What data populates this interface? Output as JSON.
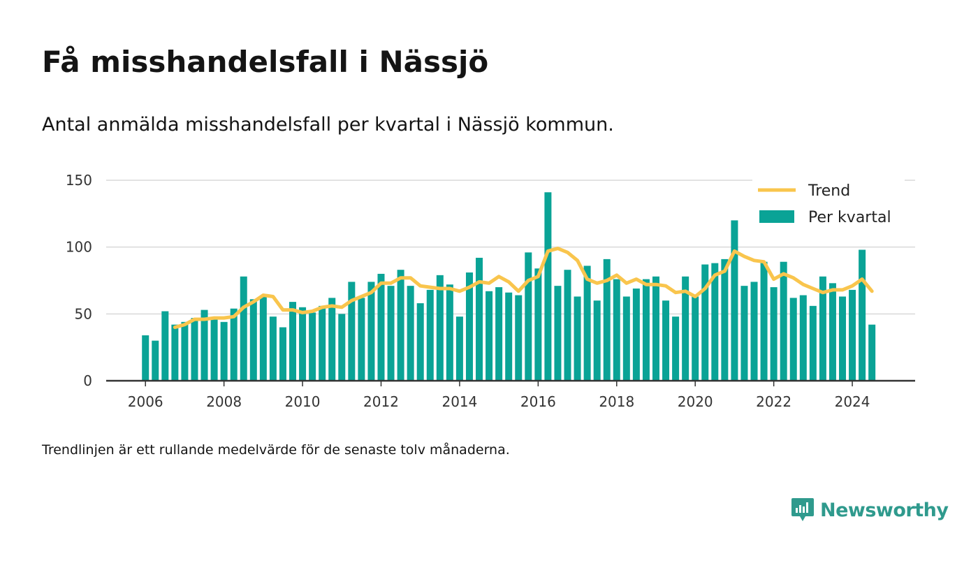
{
  "title": "Få misshandelsfall i Nässjö",
  "subtitle": "Antal anmälda misshandelsfall per kvartal i Nässjö kommun.",
  "note": "Trendlinjen är ett rullande medelvärde för de senaste tolv månaderna.",
  "brand": {
    "name": "Newsworthy",
    "icon": "newsworthy-logo-icon",
    "color": "#2f9a8d"
  },
  "colors": {
    "bars": "#0aa396",
    "trend": "#f9c54d",
    "grid": "#d9d9d9",
    "axis": "#333333"
  },
  "chart_data": {
    "type": "bar",
    "ylim": [
      0,
      150
    ],
    "yticks": [
      0,
      50,
      100,
      150
    ],
    "xticks": [
      "2006",
      "2008",
      "2010",
      "2012",
      "2014",
      "2016",
      "2018",
      "2020",
      "2022",
      "2024"
    ],
    "xrange": [
      2005,
      2025.6
    ],
    "legend_position": "top-right",
    "grid": true,
    "x": [
      2006.0,
      2006.25,
      2006.5,
      2006.75,
      2007.0,
      2007.25,
      2007.5,
      2007.75,
      2008.0,
      2008.25,
      2008.5,
      2008.75,
      2009.0,
      2009.25,
      2009.5,
      2009.75,
      2010.0,
      2010.25,
      2010.5,
      2010.75,
      2011.0,
      2011.25,
      2011.5,
      2011.75,
      2012.0,
      2012.25,
      2012.5,
      2012.75,
      2013.0,
      2013.25,
      2013.5,
      2013.75,
      2014.0,
      2014.25,
      2014.5,
      2014.75,
      2015.0,
      2015.25,
      2015.5,
      2015.75,
      2016.0,
      2016.25,
      2016.5,
      2016.75,
      2017.0,
      2017.25,
      2017.5,
      2017.75,
      2018.0,
      2018.25,
      2018.5,
      2018.75,
      2019.0,
      2019.25,
      2019.5,
      2019.75,
      2020.0,
      2020.25,
      2020.5,
      2020.75,
      2021.0,
      2021.25,
      2021.5,
      2021.75,
      2022.0,
      2022.25,
      2022.5,
      2022.75,
      2023.0,
      2023.25,
      2023.5,
      2023.75,
      2024.0,
      2024.25,
      2024.5
    ],
    "series": [
      {
        "name": "Per kvartal",
        "type": "bar",
        "values": [
          34,
          30,
          52,
          42,
          44,
          47,
          53,
          46,
          44,
          54,
          78,
          61,
          63,
          48,
          40,
          59,
          55,
          51,
          56,
          62,
          50,
          74,
          62,
          74,
          80,
          71,
          83,
          71,
          58,
          68,
          79,
          72,
          48,
          81,
          92,
          67,
          70,
          66,
          64,
          96,
          84,
          141,
          71,
          83,
          63,
          86,
          60,
          91,
          76,
          63,
          69,
          76,
          78,
          60,
          48,
          78,
          63,
          87,
          88,
          91,
          120,
          71,
          74,
          89,
          70,
          89,
          62,
          64,
          56,
          78,
          73,
          63,
          68,
          98,
          42
        ]
      },
      {
        "name": "Trend",
        "type": "line",
        "values": [
          null,
          null,
          null,
          40,
          42,
          46,
          46,
          47,
          47,
          48,
          55,
          59,
          64,
          63,
          53,
          53,
          51,
          52,
          55,
          56,
          55,
          60,
          63,
          66,
          73,
          73,
          77,
          77,
          71,
          70,
          69,
          69,
          67,
          70,
          74,
          73,
          78,
          74,
          67,
          75,
          78,
          97,
          99,
          96,
          90,
          76,
          73,
          75,
          79,
          73,
          76,
          72,
          72,
          71,
          66,
          67,
          63,
          69,
          79,
          82,
          97,
          93,
          90,
          89,
          76,
          80,
          77,
          72,
          69,
          66,
          68,
          68,
          71,
          76,
          67
        ]
      }
    ]
  }
}
